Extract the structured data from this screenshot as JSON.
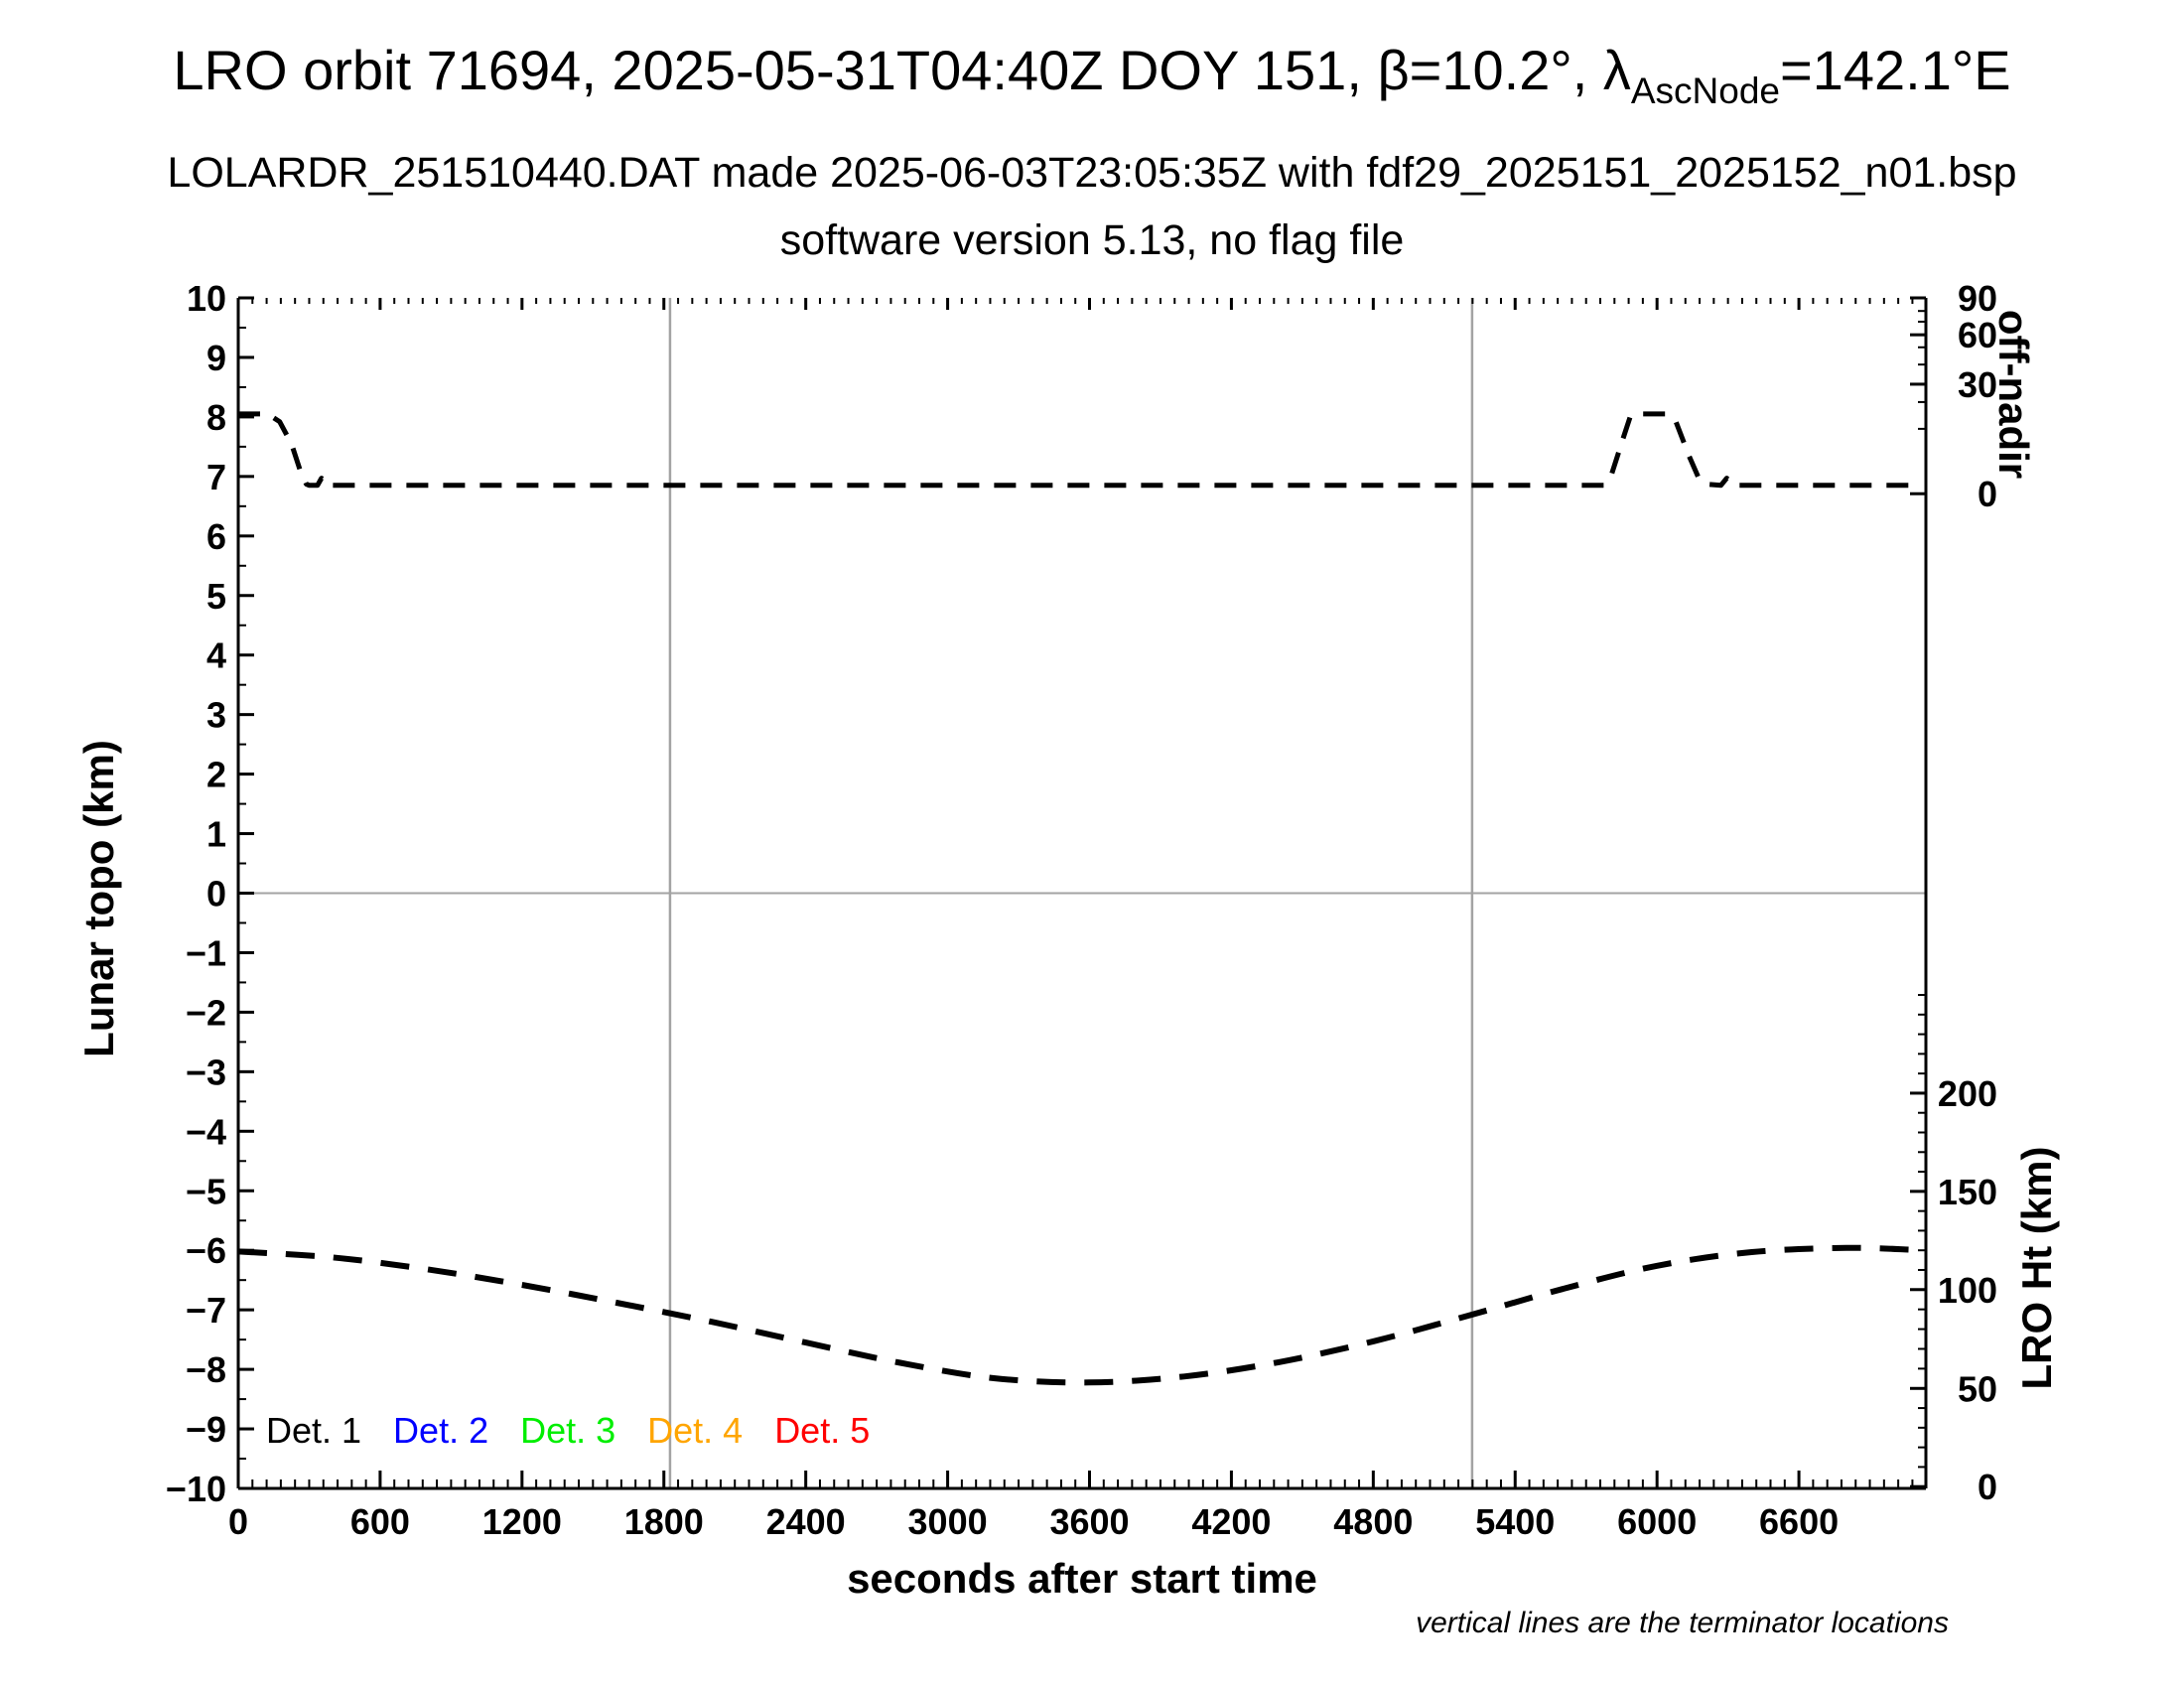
{
  "header": {
    "title_part1": "LRO orbit 71694, 2025-05-31T04:40Z DOY 151, β=10.2°, λ",
    "title_subscript": "AscNode",
    "title_part2": "=142.1°E",
    "subtitle1": "LOLARDR_251510440.DAT made 2025-06-03T23:05:35Z with fdf29_2025151_2025152_n01.bsp",
    "subtitle2": "software version 5.13, no flag file"
  },
  "footnote": "vertical lines are the terminator locations",
  "chart_data": {
    "type": "line",
    "title": "LRO orbit 71694, 2025-05-31T04:40Z DOY 151, β=10.2°, λAscNode=142.1°E",
    "xlabel": "seconds after start time",
    "ylabel_left": "Lunar topo (km)",
    "ylabel_right_top": "off-nadir",
    "ylabel_right_bottom": "LRO Ht (km)",
    "x_axis": {
      "range_s": [
        0,
        7137
      ],
      "tick_labels": [
        "0",
        "600",
        "1200",
        "1800",
        "2400",
        "3000",
        "3600",
        "4200",
        "4800",
        "5400",
        "6000",
        "6600"
      ],
      "tick_values": [
        0,
        600,
        1200,
        1800,
        2400,
        3000,
        3600,
        4200,
        4800,
        5400,
        6000,
        6600
      ],
      "minor_step_s": 60
    },
    "y_left_axis": {
      "range_km": [
        -10,
        10
      ],
      "tick_labels": [
        "10",
        "9",
        "8",
        "7",
        "6",
        "5",
        "4",
        "3",
        "2",
        "1",
        "0",
        "−1",
        "−2",
        "−3",
        "−4",
        "−5",
        "−6",
        "−7",
        "−8",
        "−9",
        "−10"
      ],
      "tick_values": [
        10,
        9,
        8,
        7,
        6,
        5,
        4,
        3,
        2,
        1,
        0,
        -1,
        -2,
        -3,
        -4,
        -5,
        -6,
        -7,
        -8,
        -9,
        -10
      ],
      "minor_step_km": 0.5
    },
    "y_right_top_axis": {
      "label": "off-nadir",
      "majors": [
        {
          "label": "90",
          "at_left_units": 10.0
        },
        {
          "label": "60",
          "at_left_units": 9.38
        },
        {
          "label": "30",
          "at_left_units": 8.55
        },
        {
          "label": "0",
          "at_left_units": 6.71
        }
      ],
      "minors_at_left_units": [
        9.78,
        9.6,
        9.17,
        8.88,
        8.25,
        7.8
      ]
    },
    "y_right_bottom_axis": {
      "label": "LRO Ht (km)",
      "majors": [
        {
          "label": "200",
          "at_left_units": -3.36
        },
        {
          "label": "150",
          "at_left_units": -5.01
        },
        {
          "label": "100",
          "at_left_units": -6.66
        },
        {
          "label": "50",
          "at_left_units": -8.32
        },
        {
          "label": "0",
          "at_left_units": -9.97
        }
      ],
      "minors_between_majors": 4,
      "minors_above_top": 5
    },
    "terminator_lines_s": [
      1826,
      5218
    ],
    "zero_line_at_km": 0,
    "grid_color": "#a3a3a3",
    "line_color": "#000000",
    "legend": [
      {
        "label": "Det. 1",
        "color": "#000000"
      },
      {
        "label": "Det. 2",
        "color": "#0000ff"
      },
      {
        "label": "Det. 3",
        "color": "#00ee00"
      },
      {
        "label": "Det. 4",
        "color": "#ffa500"
      },
      {
        "label": "Det. 5",
        "color": "#ff0000"
      }
    ],
    "series": [
      {
        "name": "off-nadir angle (right top axis, dashed)",
        "smooth": false,
        "dash": [
          22,
          15
        ],
        "width": 5,
        "points": [
          [
            0,
            8.05
          ],
          [
            125,
            8.05
          ],
          [
            175,
            7.92
          ],
          [
            225,
            7.55
          ],
          [
            262,
            7.1
          ],
          [
            288,
            6.87
          ],
          [
            300,
            6.85
          ],
          [
            335,
            6.85
          ],
          [
            352,
            6.97
          ],
          [
            370,
            6.85
          ],
          [
            5775,
            6.85
          ],
          [
            5805,
            7.0
          ],
          [
            5855,
            7.62
          ],
          [
            5888,
            8.02
          ],
          [
            5905,
            8.05
          ],
          [
            6050,
            8.05
          ],
          [
            6080,
            7.92
          ],
          [
            6135,
            7.35
          ],
          [
            6175,
            6.98
          ],
          [
            6205,
            6.87
          ],
          [
            6270,
            6.85
          ],
          [
            6295,
            6.97
          ],
          [
            6320,
            6.85
          ],
          [
            7090,
            6.85
          ]
        ]
      },
      {
        "name": "LRO height (right bottom axis, dashed)",
        "smooth": true,
        "dash": [
          29,
          19
        ],
        "width": 6,
        "points": [
          [
            0,
            -6.02
          ],
          [
            400,
            -6.12
          ],
          [
            800,
            -6.32
          ],
          [
            1200,
            -6.58
          ],
          [
            1600,
            -6.88
          ],
          [
            2000,
            -7.2
          ],
          [
            2400,
            -7.55
          ],
          [
            2800,
            -7.89
          ],
          [
            3200,
            -8.15
          ],
          [
            3600,
            -8.22
          ],
          [
            4000,
            -8.12
          ],
          [
            4400,
            -7.88
          ],
          [
            4800,
            -7.53
          ],
          [
            5200,
            -7.1
          ],
          [
            5600,
            -6.65
          ],
          [
            6000,
            -6.26
          ],
          [
            6400,
            -6.03
          ],
          [
            6800,
            -5.96
          ],
          [
            7080,
            -5.99
          ]
        ]
      }
    ]
  }
}
